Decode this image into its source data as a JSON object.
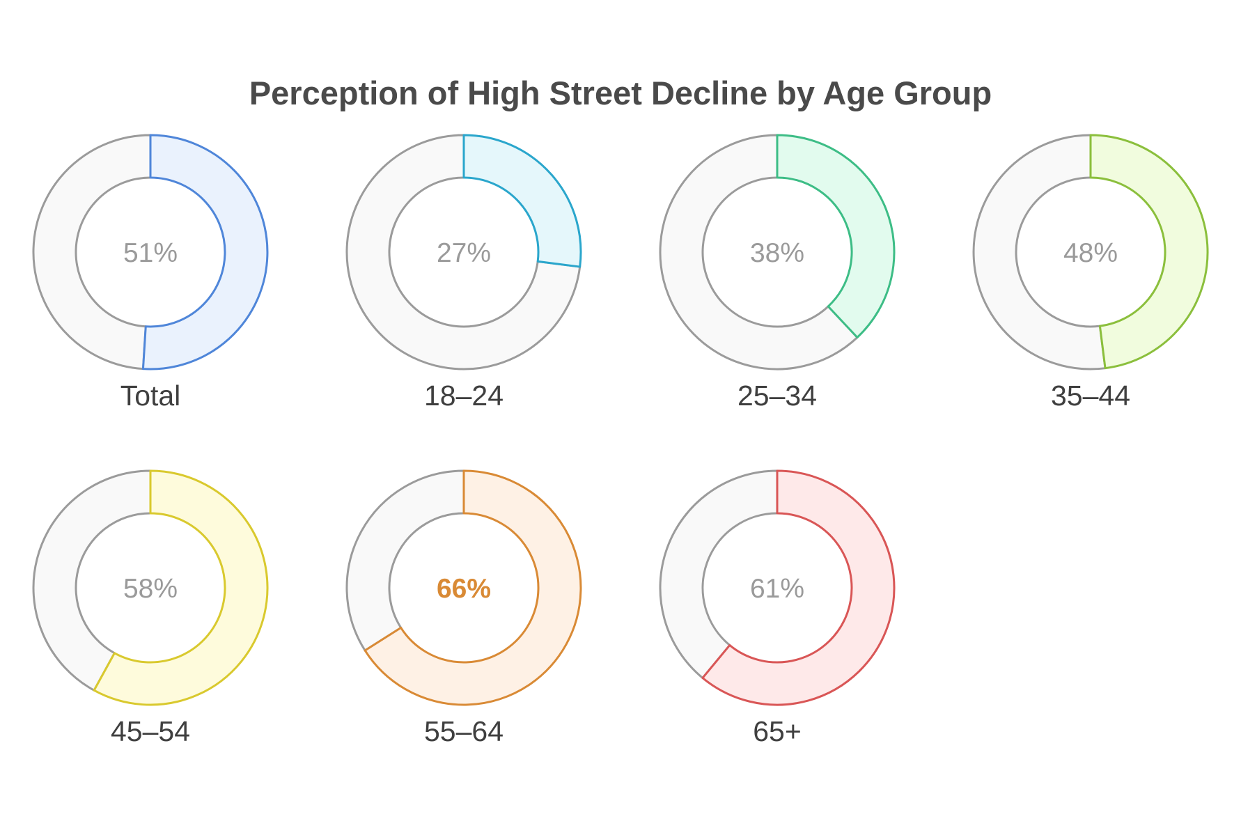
{
  "chart_data": {
    "type": "pie",
    "subtype": "donut",
    "title": "Perception of High Street Decline by Age Group",
    "unit": "%",
    "categories": [
      "Total",
      "18–24",
      "25–34",
      "35–44",
      "45–54",
      "55–64",
      "65+"
    ],
    "values": [
      51,
      27,
      38,
      48,
      58,
      66,
      61
    ],
    "value_labels": [
      "51%",
      "27%",
      "38%",
      "48%",
      "58%",
      "66%",
      "61%"
    ],
    "colors": {
      "stroke": [
        "#4f86d9",
        "#2aa6cc",
        "#3dbd86",
        "#8bbf3c",
        "#d9c92e",
        "#d98a35",
        "#d95656"
      ],
      "fill": [
        "#eaf2fd",
        "#e5f7fb",
        "#e2fbee",
        "#f1fcde",
        "#fefbdc",
        "#fef1e5",
        "#fee9e9"
      ],
      "remainder_fill": "#f9f9f9",
      "remainder_stroke": "#9b9b9b",
      "label": "#9a9a9a",
      "highlight_label": "#d98a35"
    },
    "highlight": "55–64",
    "legend": "none",
    "grid": false
  }
}
